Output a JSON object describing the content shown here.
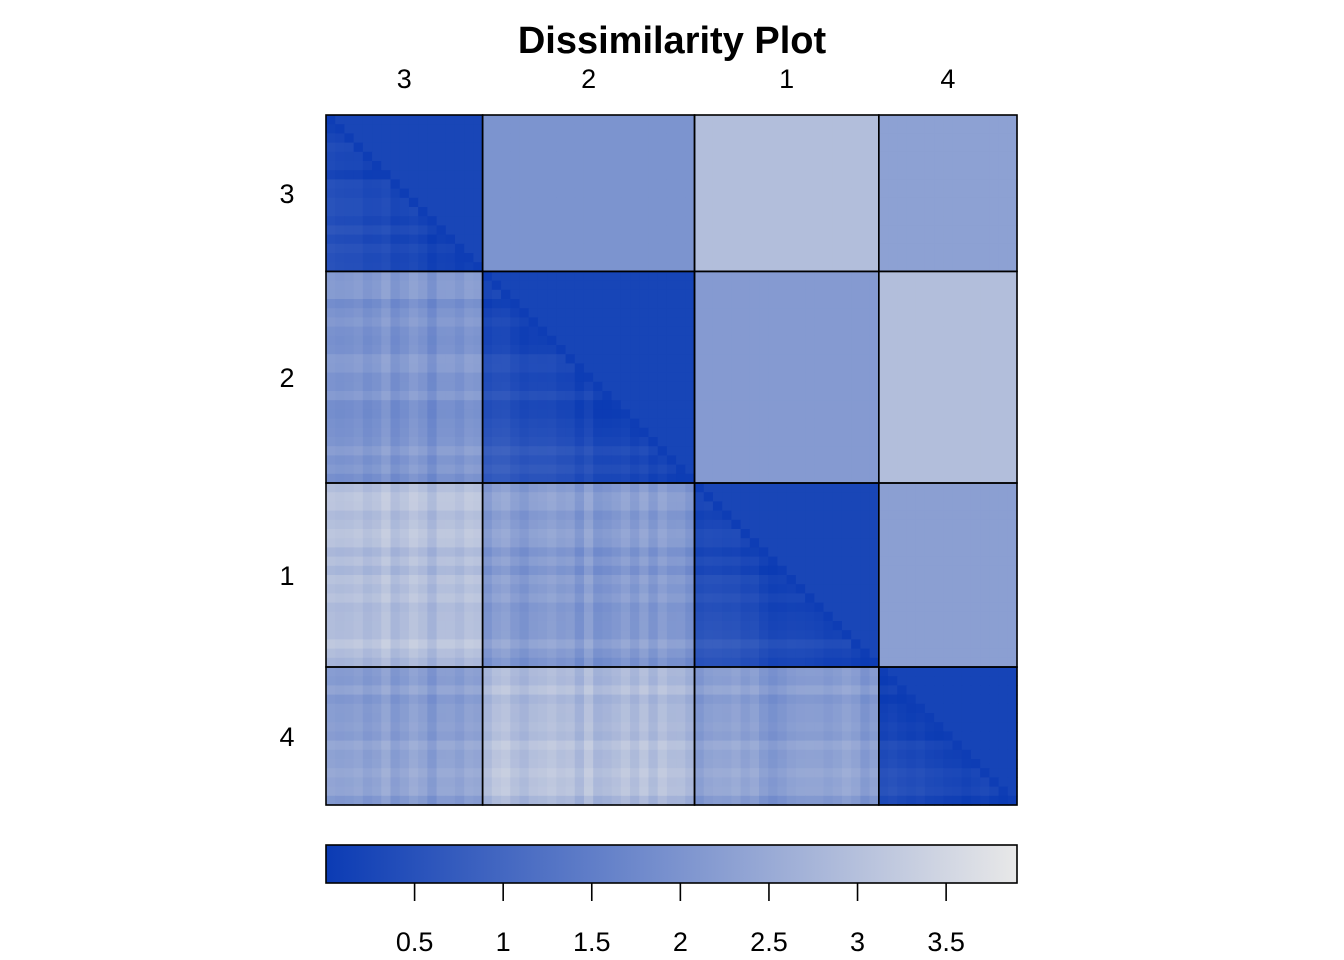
{
  "chart_data": {
    "type": "heatmap",
    "title": "Dissimilarity Plot",
    "clusters": [
      {
        "label": "3",
        "size": 17
      },
      {
        "label": "2",
        "size": 23
      },
      {
        "label": "1",
        "size": 20
      },
      {
        "label": "4",
        "size": 15
      }
    ],
    "lower_triangle": "observation-level dissimilarities",
    "upper_triangle": "cluster-average dissimilarities",
    "within_cluster_mean": [
      0.25,
      0.22,
      0.25,
      0.2
    ],
    "between_cluster_mean": [
      [
        0.25,
        2.0,
        2.95,
        2.3
      ],
      [
        2.0,
        0.22,
        2.15,
        2.95
      ],
      [
        2.95,
        2.15,
        0.25,
        2.25
      ],
      [
        2.3,
        2.95,
        2.25,
        0.2
      ]
    ],
    "colorbar": {
      "min": 0.0,
      "max": 3.9,
      "low_color": "#0b3bb4",
      "high_color": "#e8e8e8",
      "ticks": [
        0.5,
        1,
        1.5,
        2,
        2.5,
        3,
        3.5
      ],
      "tick_labels": [
        "0.5",
        "1",
        "1.5",
        "2",
        "2.5",
        "3",
        "3.5"
      ]
    }
  }
}
